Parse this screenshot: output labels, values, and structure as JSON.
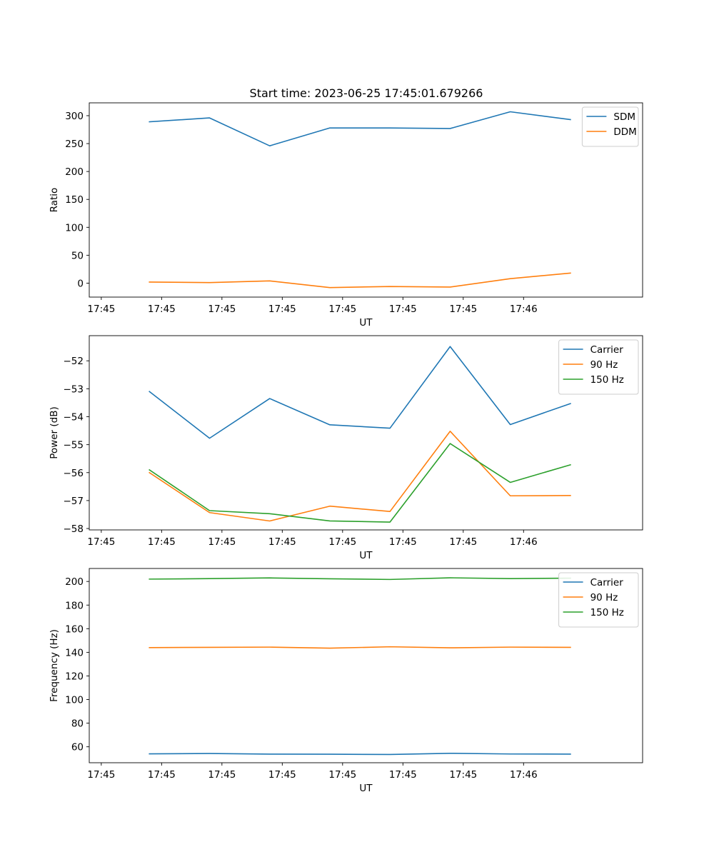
{
  "title": "Start time: 2023-06-25 17:45:01.679266",
  "chart_data": [
    {
      "type": "line",
      "ylabel": "Ratio",
      "xlabel": "UT",
      "x": [
        "17:45:02.5",
        "17:45:03.5",
        "17:45:04.5",
        "17:45:05.5",
        "17:45:06.5",
        "17:45:07.5",
        "17:45:08.5",
        "17:45:09.5"
      ],
      "xlim": [
        "17:45:01.5",
        "17:45:10.7"
      ],
      "xticks": [
        "17:45",
        "17:45",
        "17:45",
        "17:45",
        "17:45",
        "17:45",
        "17:45",
        "17:46"
      ],
      "ylim": [
        -25,
        323
      ],
      "yticks": [
        0,
        50,
        100,
        150,
        200,
        250,
        300
      ],
      "legend_position": "top-right",
      "grid": false,
      "series": [
        {
          "name": "SDM",
          "color": "#1f77b4",
          "values": [
            289,
            296,
            246,
            278,
            278,
            277,
            307,
            293
          ]
        },
        {
          "name": "DDM",
          "color": "#ff7f0e",
          "values": [
            2,
            1,
            4,
            -8,
            -6,
            -7,
            8,
            18
          ]
        }
      ]
    },
    {
      "type": "line",
      "ylabel": "Power (dB)",
      "xlabel": "UT",
      "x": [
        "17:45:02.5",
        "17:45:03.5",
        "17:45:04.5",
        "17:45:05.5",
        "17:45:06.5",
        "17:45:07.5",
        "17:45:08.5",
        "17:45:09.5"
      ],
      "xlim": [
        "17:45:01.5",
        "17:45:10.7"
      ],
      "xticks": [
        "17:45",
        "17:45",
        "17:45",
        "17:45",
        "17:45",
        "17:45",
        "17:45",
        "17:46"
      ],
      "ylim": [
        -58.05,
        -51.1
      ],
      "yticks": [
        -58,
        -57,
        -56,
        -55,
        -54,
        -53,
        -52
      ],
      "legend_position": "top-right",
      "grid": false,
      "series": [
        {
          "name": "Carrier",
          "color": "#1f77b4",
          "values": [
            -53.1,
            -54.77,
            -53.35,
            -54.29,
            -54.41,
            -51.49,
            -54.28,
            -53.53
          ]
        },
        {
          "name": "90 Hz",
          "color": "#ff7f0e",
          "values": [
            -56.0,
            -57.43,
            -57.73,
            -57.2,
            -57.39,
            -54.52,
            -56.83,
            -56.82
          ]
        },
        {
          "name": "150 Hz",
          "color": "#2ca02c",
          "values": [
            -55.9,
            -57.36,
            -57.47,
            -57.73,
            -57.77,
            -54.96,
            -56.35,
            -55.72
          ]
        }
      ]
    },
    {
      "type": "line",
      "ylabel": "Frequency (Hz)",
      "xlabel": "UT",
      "x": [
        "17:45:02.5",
        "17:45:03.5",
        "17:45:04.5",
        "17:45:05.5",
        "17:45:06.5",
        "17:45:07.5",
        "17:45:08.5",
        "17:45:09.5"
      ],
      "xlim": [
        "17:45:01.5",
        "17:45:10.7"
      ],
      "xticks": [
        "17:45",
        "17:45",
        "17:45",
        "17:45",
        "17:45",
        "17:45",
        "17:45",
        "17:46"
      ],
      "ylim": [
        46.5,
        211
      ],
      "yticks": [
        60,
        80,
        100,
        120,
        140,
        160,
        180,
        200
      ],
      "legend_position": "top-right",
      "grid": false,
      "series": [
        {
          "name": "Carrier",
          "color": "#1f77b4",
          "values": [
            54.0,
            54.3,
            53.8,
            53.7,
            53.5,
            54.5,
            53.9,
            53.8
          ]
        },
        {
          "name": "90 Hz",
          "color": "#ff7f0e",
          "values": [
            144.0,
            144.2,
            144.4,
            143.5,
            144.7,
            143.8,
            144.4,
            144.2
          ]
        },
        {
          "name": "150 Hz",
          "color": "#2ca02c",
          "values": [
            202.0,
            202.4,
            203.0,
            202.3,
            201.7,
            203.1,
            202.4,
            202.8
          ]
        }
      ]
    }
  ]
}
